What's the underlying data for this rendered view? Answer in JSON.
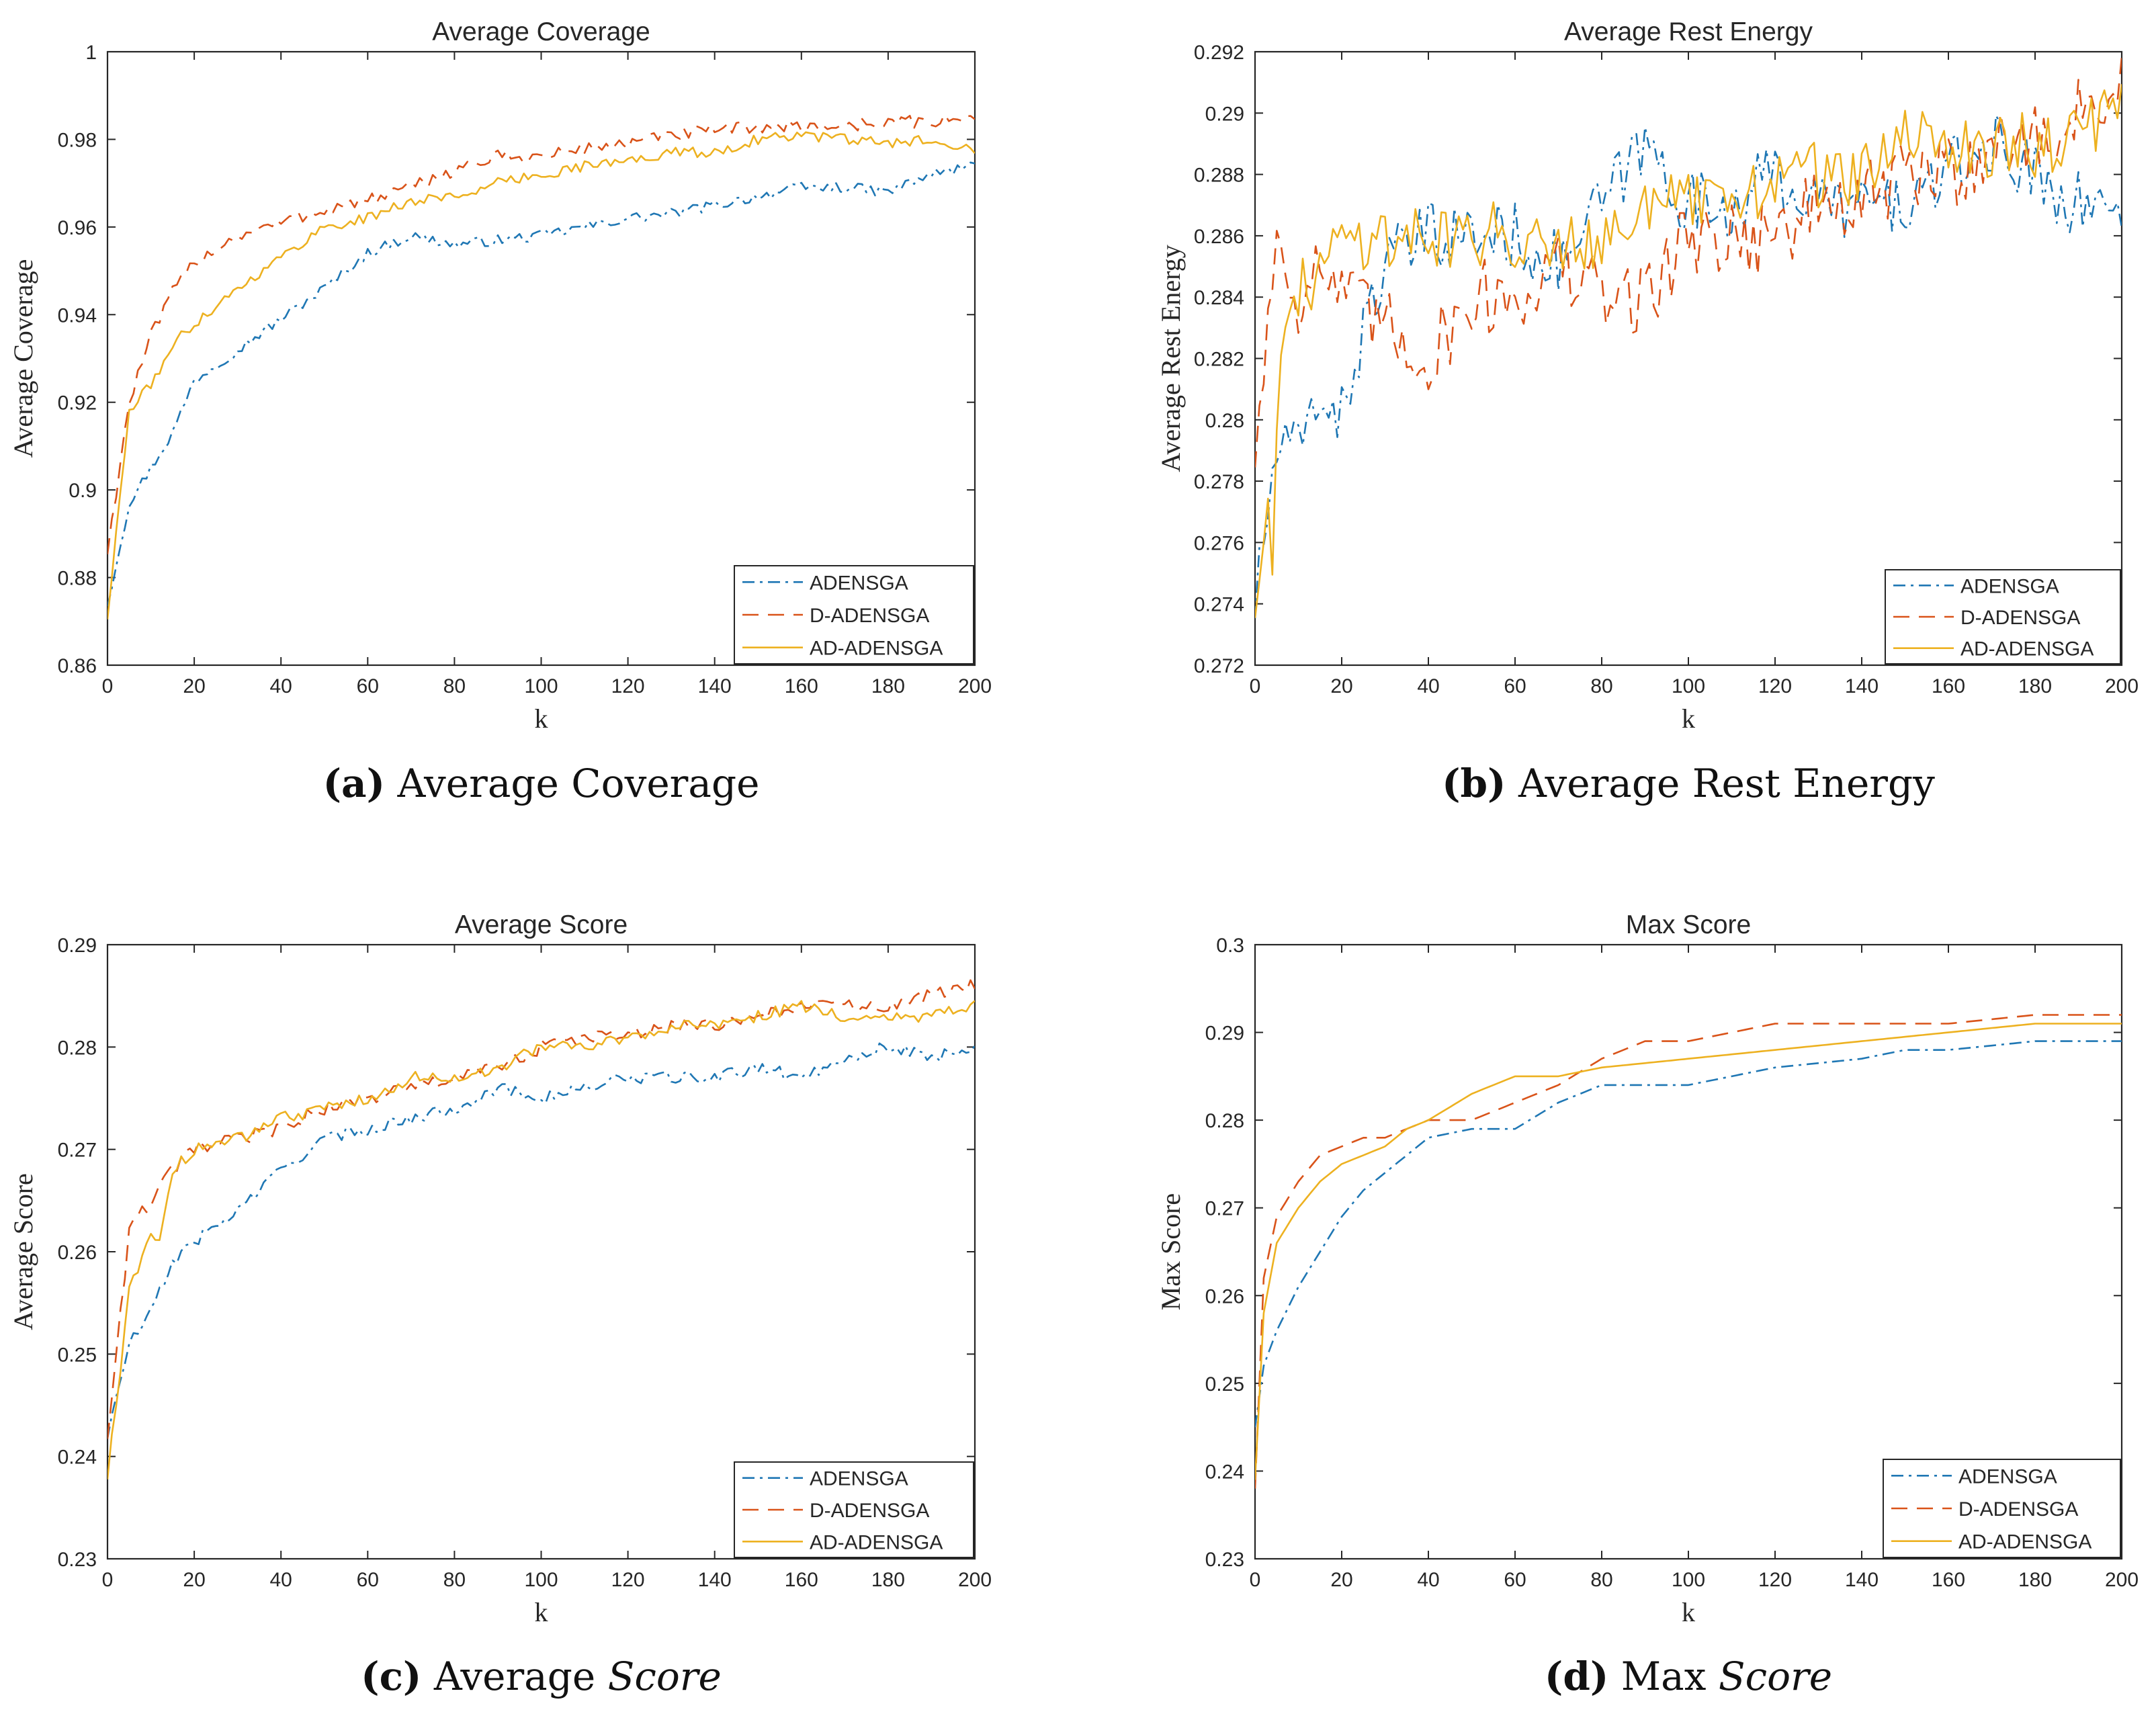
{
  "colors": {
    "adensga": "#1f77b4",
    "d_adensga": "#d95319",
    "ad_adensga": "#edb120"
  },
  "chart_data": [
    {
      "id": "a",
      "type": "line",
      "title": "Average Coverage",
      "xlabel": "k",
      "ylabel": "Average Coverage",
      "xlim": [
        0,
        200
      ],
      "ylim": [
        0.86,
        1
      ],
      "xticks": [
        "0",
        "20",
        "40",
        "60",
        "80",
        "100",
        "120",
        "140",
        "160",
        "180",
        "200"
      ],
      "yticks": [
        "0.86",
        "0.88",
        "0.9",
        "0.92",
        "0.94",
        "0.96",
        "0.98",
        "1"
      ],
      "legend": [
        "ADENSGA",
        "D-ADENSGA",
        "AD-ADENSGA"
      ],
      "legend_position": "bottom-right",
      "caption": {
        "letter": "(a)",
        "plain": "Average Coverage",
        "italic": ""
      },
      "series": [
        {
          "name": "ADENSGA",
          "noise": 0.0012,
          "x": [
            0,
            5,
            10,
            15,
            20,
            30,
            40,
            50,
            60,
            70,
            80,
            90,
            100,
            110,
            120,
            130,
            140,
            150,
            160,
            170,
            180,
            190,
            200
          ],
          "y": [
            0.874,
            0.897,
            0.905,
            0.913,
            0.925,
            0.932,
            0.939,
            0.946,
            0.954,
            0.958,
            0.956,
            0.957,
            0.958,
            0.96,
            0.962,
            0.963,
            0.965,
            0.967,
            0.969,
            0.969,
            0.968,
            0.972,
            0.974
          ]
        },
        {
          "name": "D-ADENSGA",
          "noise": 0.0015,
          "x": [
            0,
            5,
            10,
            15,
            20,
            30,
            40,
            50,
            60,
            70,
            80,
            90,
            100,
            110,
            120,
            130,
            140,
            150,
            160,
            170,
            180,
            190,
            200
          ],
          "y": [
            0.886,
            0.92,
            0.935,
            0.945,
            0.952,
            0.958,
            0.961,
            0.964,
            0.966,
            0.969,
            0.973,
            0.976,
            0.976,
            0.978,
            0.979,
            0.981,
            0.982,
            0.983,
            0.983,
            0.983,
            0.984,
            0.984,
            0.985
          ]
        },
        {
          "name": "AD-ADENSGA",
          "noise": 0.0012,
          "x": [
            0,
            5,
            10,
            15,
            20,
            30,
            40,
            50,
            60,
            70,
            80,
            90,
            100,
            110,
            120,
            130,
            140,
            150,
            160,
            170,
            180,
            190,
            200
          ],
          "y": [
            0.871,
            0.918,
            0.924,
            0.933,
            0.938,
            0.946,
            0.953,
            0.96,
            0.962,
            0.966,
            0.967,
            0.97,
            0.972,
            0.974,
            0.975,
            0.977,
            0.977,
            0.98,
            0.981,
            0.98,
            0.979,
            0.98,
            0.978
          ]
        }
      ]
    },
    {
      "id": "b",
      "type": "line",
      "title": "Average Rest Energy",
      "xlabel": "k",
      "ylabel": "Average Rest Energy",
      "xlim": [
        0,
        200
      ],
      "ylim": [
        0.272,
        0.292
      ],
      "xticks": [
        "0",
        "20",
        "40",
        "60",
        "80",
        "100",
        "120",
        "140",
        "160",
        "180",
        "200"
      ],
      "yticks": [
        "0.272",
        "0.274",
        "0.276",
        "0.278",
        "0.28",
        "0.282",
        "0.284",
        "0.286",
        "0.288",
        "0.29",
        "0.292"
      ],
      "legend": [
        "ADENSGA",
        "D-ADENSGA",
        "AD-ADENSGA"
      ],
      "legend_position": "bottom-right",
      "caption": {
        "letter": "(b)",
        "plain": "Average Rest Energy",
        "italic": ""
      },
      "series": [
        {
          "name": "ADENSGA",
          "noise": 0.0011,
          "x": [
            0,
            5,
            10,
            15,
            20,
            25,
            30,
            40,
            50,
            60,
            70,
            80,
            90,
            100,
            110,
            120,
            130,
            140,
            150,
            160,
            170,
            180,
            190,
            200
          ],
          "y": [
            0.274,
            0.279,
            0.279,
            0.281,
            0.28,
            0.283,
            0.285,
            0.286,
            0.286,
            0.286,
            0.285,
            0.287,
            0.289,
            0.287,
            0.287,
            0.288,
            0.287,
            0.287,
            0.287,
            0.288,
            0.289,
            0.288,
            0.287,
            0.287
          ]
        },
        {
          "name": "D-ADENSGA",
          "noise": 0.0013,
          "x": [
            0,
            5,
            10,
            15,
            20,
            30,
            40,
            50,
            60,
            70,
            80,
            90,
            100,
            110,
            120,
            130,
            140,
            150,
            160,
            170,
            180,
            190,
            200
          ],
          "y": [
            0.279,
            0.286,
            0.284,
            0.285,
            0.284,
            0.283,
            0.282,
            0.284,
            0.284,
            0.285,
            0.284,
            0.284,
            0.286,
            0.286,
            0.286,
            0.287,
            0.287,
            0.288,
            0.288,
            0.289,
            0.289,
            0.29,
            0.291
          ]
        },
        {
          "name": "AD-ADENSGA",
          "noise": 0.0011,
          "x": [
            0,
            2,
            4,
            6,
            10,
            15,
            20,
            30,
            40,
            50,
            60,
            70,
            80,
            90,
            100,
            110,
            120,
            130,
            140,
            150,
            160,
            170,
            180,
            190,
            200
          ],
          "y": [
            0.274,
            0.277,
            0.276,
            0.282,
            0.284,
            0.285,
            0.286,
            0.286,
            0.286,
            0.286,
            0.286,
            0.286,
            0.286,
            0.287,
            0.287,
            0.287,
            0.288,
            0.288,
            0.288,
            0.289,
            0.289,
            0.289,
            0.289,
            0.289,
            0.291
          ]
        }
      ]
    },
    {
      "id": "c",
      "type": "line",
      "title": "Average Score",
      "xlabel": "k",
      "ylabel": "Average Score",
      "xlim": [
        0,
        200
      ],
      "ylim": [
        0.23,
        0.29
      ],
      "xticks": [
        "0",
        "20",
        "40",
        "60",
        "80",
        "100",
        "120",
        "140",
        "160",
        "180",
        "200"
      ],
      "yticks": [
        "0.23",
        "0.24",
        "0.25",
        "0.26",
        "0.27",
        "0.28",
        "0.29"
      ],
      "legend": [
        "ADENSGA",
        "D-ADENSGA",
        "AD-ADENSGA"
      ],
      "legend_position": "bottom-right",
      "caption": {
        "letter": "(c)",
        "plain": "Average ",
        "italic": "Score"
      },
      "series": [
        {
          "name": "ADENSGA",
          "noise": 0.0006,
          "x": [
            0,
            5,
            10,
            15,
            20,
            30,
            40,
            50,
            60,
            70,
            80,
            90,
            100,
            110,
            120,
            130,
            140,
            150,
            160,
            170,
            180,
            190,
            200
          ],
          "y": [
            0.242,
            0.251,
            0.254,
            0.259,
            0.261,
            0.264,
            0.268,
            0.271,
            0.272,
            0.273,
            0.274,
            0.276,
            0.275,
            0.276,
            0.277,
            0.277,
            0.277,
            0.278,
            0.277,
            0.279,
            0.28,
            0.279,
            0.28
          ]
        },
        {
          "name": "D-ADENSGA",
          "noise": 0.0007,
          "x": [
            0,
            5,
            10,
            15,
            20,
            30,
            40,
            50,
            60,
            70,
            80,
            90,
            100,
            110,
            120,
            130,
            140,
            150,
            160,
            170,
            180,
            190,
            200
          ],
          "y": [
            0.242,
            0.262,
            0.265,
            0.268,
            0.27,
            0.271,
            0.272,
            0.274,
            0.275,
            0.276,
            0.277,
            0.278,
            0.28,
            0.281,
            0.281,
            0.282,
            0.282,
            0.283,
            0.284,
            0.284,
            0.284,
            0.285,
            0.286
          ]
        },
        {
          "name": "AD-ADENSGA",
          "noise": 0.0006,
          "x": [
            0,
            5,
            10,
            12,
            15,
            20,
            30,
            40,
            50,
            60,
            70,
            80,
            90,
            100,
            110,
            120,
            130,
            140,
            150,
            160,
            170,
            180,
            190,
            200
          ],
          "y": [
            0.238,
            0.256,
            0.262,
            0.261,
            0.268,
            0.27,
            0.271,
            0.273,
            0.274,
            0.275,
            0.277,
            0.277,
            0.278,
            0.28,
            0.28,
            0.281,
            0.282,
            0.282,
            0.283,
            0.284,
            0.283,
            0.283,
            0.283,
            0.284
          ]
        }
      ]
    },
    {
      "id": "d",
      "type": "line",
      "title": "Max Score",
      "xlabel": "k",
      "ylabel": "Max Score",
      "xlim": [
        0,
        200
      ],
      "ylim": [
        0.23,
        0.3
      ],
      "xticks": [
        "0",
        "20",
        "40",
        "60",
        "80",
        "100",
        "120",
        "140",
        "160",
        "180",
        "200"
      ],
      "yticks": [
        "0.23",
        "0.24",
        "0.25",
        "0.26",
        "0.27",
        "0.28",
        "0.29",
        "0.3"
      ],
      "legend": [
        "ADENSGA",
        "D-ADENSGA",
        "AD-ADENSGA"
      ],
      "legend_position": "bottom-right",
      "caption": {
        "letter": "(d)",
        "plain": "Max ",
        "italic": "Score"
      },
      "series": [
        {
          "name": "ADENSGA",
          "noise": 0,
          "x": [
            0,
            2,
            5,
            10,
            15,
            20,
            25,
            30,
            35,
            40,
            50,
            60,
            70,
            80,
            100,
            110,
            120,
            140,
            150,
            160,
            180,
            190,
            200
          ],
          "y": [
            0.245,
            0.252,
            0.256,
            0.261,
            0.265,
            0.269,
            0.272,
            0.274,
            0.276,
            0.278,
            0.279,
            0.279,
            0.282,
            0.284,
            0.284,
            0.285,
            0.286,
            0.287,
            0.288,
            0.288,
            0.289,
            0.289,
            0.289
          ]
        },
        {
          "name": "D-ADENSGA",
          "noise": 0,
          "x": [
            0,
            2,
            5,
            10,
            15,
            20,
            25,
            30,
            40,
            50,
            60,
            70,
            80,
            90,
            100,
            110,
            120,
            140,
            160,
            180,
            200
          ],
          "y": [
            0.238,
            0.262,
            0.269,
            0.273,
            0.276,
            0.277,
            0.278,
            0.278,
            0.28,
            0.28,
            0.282,
            0.284,
            0.287,
            0.289,
            0.289,
            0.29,
            0.291,
            0.291,
            0.291,
            0.292,
            0.292
          ]
        },
        {
          "name": "AD-ADENSGA",
          "noise": 0,
          "x": [
            0,
            2,
            5,
            10,
            15,
            20,
            25,
            30,
            35,
            40,
            50,
            60,
            70,
            80,
            100,
            120,
            140,
            160,
            180,
            200
          ],
          "y": [
            0.239,
            0.258,
            0.266,
            0.27,
            0.273,
            0.275,
            0.276,
            0.277,
            0.279,
            0.28,
            0.283,
            0.285,
            0.285,
            0.286,
            0.287,
            0.288,
            0.289,
            0.29,
            0.291,
            0.291
          ]
        }
      ]
    }
  ]
}
